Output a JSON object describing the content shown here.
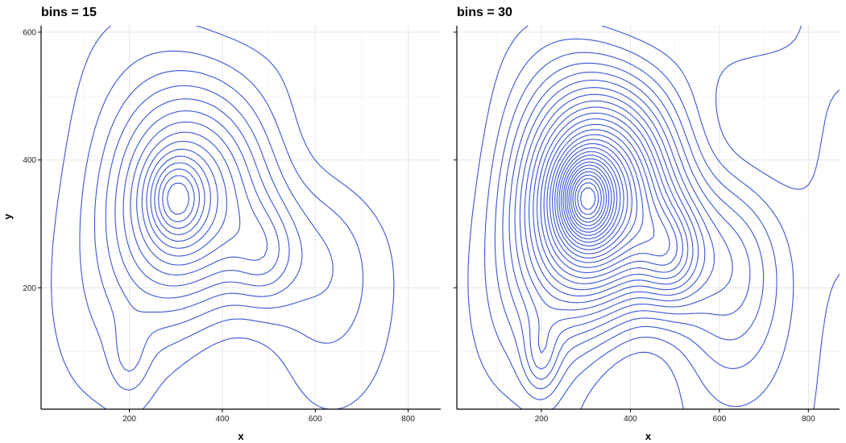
{
  "chart_data": [
    {
      "type": "contour",
      "title": "bins = 15",
      "xlabel": "x",
      "ylabel": "y",
      "xlim": [
        10,
        870
      ],
      "ylim": [
        10,
        610
      ],
      "x_ticks": [
        200,
        400,
        600,
        800
      ],
      "y_ticks": [
        200,
        400,
        600
      ],
      "x_tick_labels": [
        "200",
        "400",
        "600",
        "800"
      ],
      "y_tick_labels": [
        "200",
        "400",
        "600"
      ],
      "bins": 15,
      "grid": true,
      "peaks": [
        [
          300,
          340
        ],
        [
          490,
          250
        ]
      ]
    },
    {
      "type": "contour",
      "title": "bins = 30",
      "xlabel": "x",
      "ylabel": "",
      "xlim": [
        10,
        870
      ],
      "ylim": [
        10,
        610
      ],
      "x_ticks": [
        200,
        400,
        600,
        800
      ],
      "y_ticks": [
        200,
        400,
        600
      ],
      "x_tick_labels": [
        "200",
        "400",
        "600",
        "800"
      ],
      "y_tick_labels": [],
      "bins": 30,
      "grid": true,
      "peaks": [
        [
          300,
          340
        ],
        [
          490,
          250
        ]
      ]
    }
  ],
  "colors": {
    "contour": "#3a56d6",
    "grid_major": "#e6e6e6",
    "grid_minor": "#f2f2f2",
    "axis": "#000000"
  }
}
